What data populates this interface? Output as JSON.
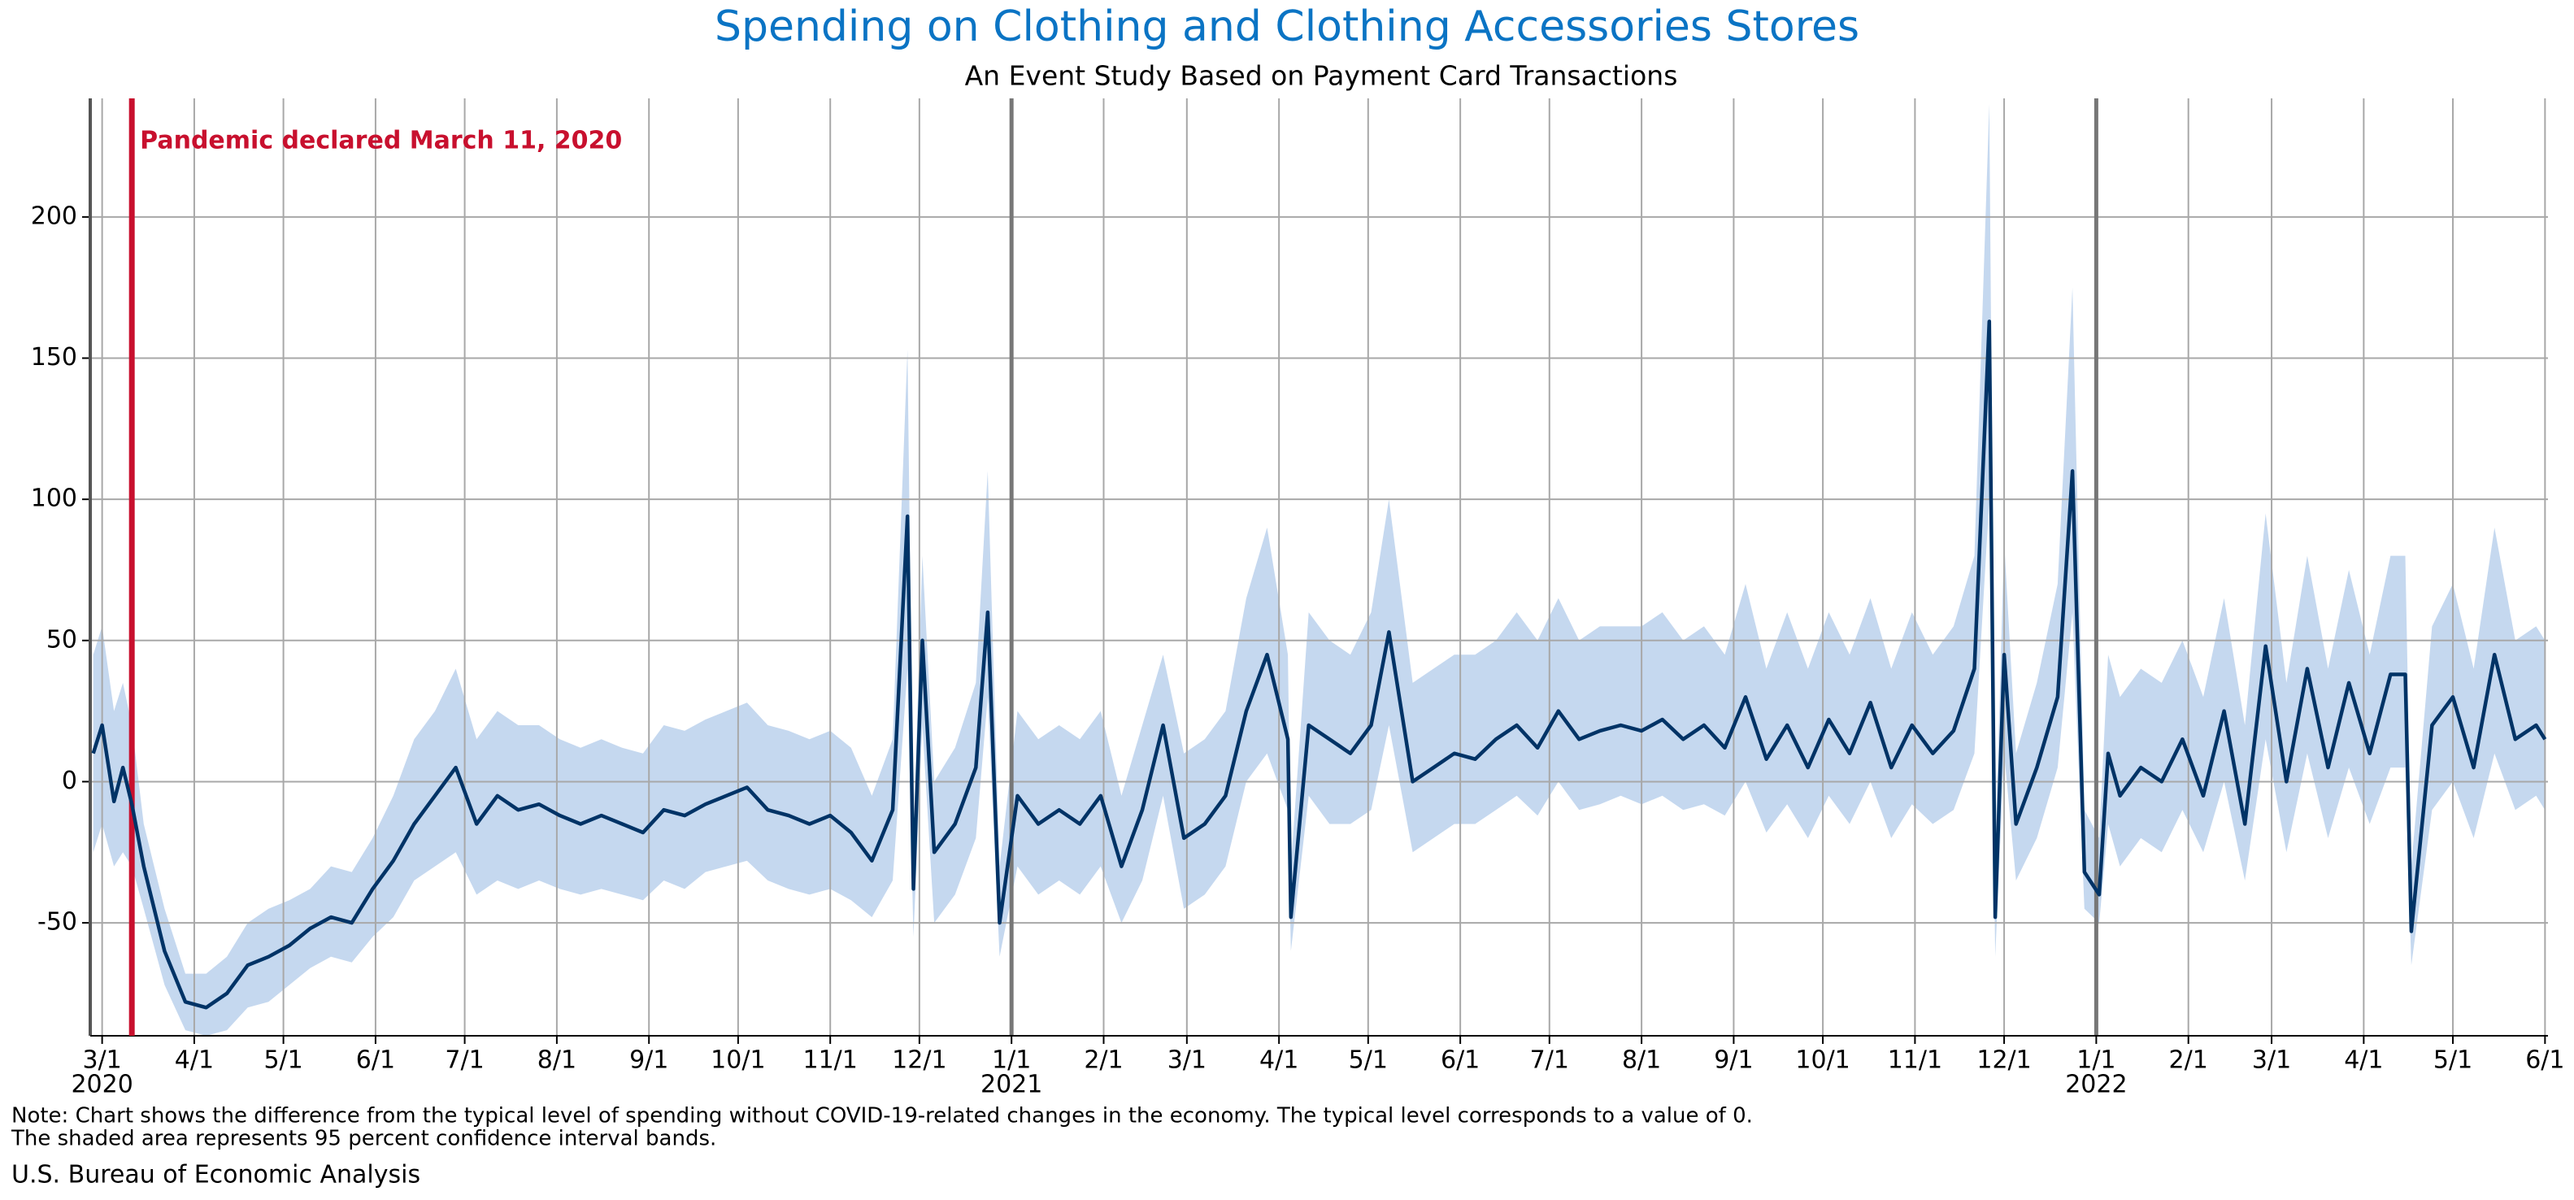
{
  "chart_data": {
    "type": "line",
    "title": "Spending on Clothing and Clothing Accessories Stores",
    "subtitle": "An Event Study Based on Payment Card Transactions",
    "note": [
      "Note: Chart shows the difference from the typical level of spending without COVID-19-related changes in the economy. The typical level corresponds to a value of 0.",
      "The shaded area represents 95 percent confidence interval bands."
    ],
    "source": "U.S. Bureau of Economic Analysis",
    "event": {
      "date": "2020-03-11",
      "label": "Pandemic declared March 11, 2020",
      "color": "#c8102e"
    },
    "color": "#003366",
    "band_color": "#c5d8ef",
    "grid": true,
    "xlim": [
      "2020-02-26",
      "2022-06-02"
    ],
    "ylim": [
      -90,
      242
    ],
    "yticks": [
      -50,
      0,
      50,
      100,
      150,
      200
    ],
    "xticks": [
      {
        "value": "2020-03-01",
        "label": "3/1"
      },
      {
        "value": "2020-04-01",
        "label": "4/1"
      },
      {
        "value": "2020-05-01",
        "label": "5/1"
      },
      {
        "value": "2020-06-01",
        "label": "6/1"
      },
      {
        "value": "2020-07-01",
        "label": "7/1"
      },
      {
        "value": "2020-08-01",
        "label": "8/1"
      },
      {
        "value": "2020-09-01",
        "label": "9/1"
      },
      {
        "value": "2020-10-01",
        "label": "10/1"
      },
      {
        "value": "2020-11-01",
        "label": "11/1"
      },
      {
        "value": "2020-12-01",
        "label": "12/1"
      },
      {
        "value": "2021-01-01",
        "label": "1/1"
      },
      {
        "value": "2021-02-01",
        "label": "2/1"
      },
      {
        "value": "2021-03-01",
        "label": "3/1"
      },
      {
        "value": "2021-04-01",
        "label": "4/1"
      },
      {
        "value": "2021-05-01",
        "label": "5/1"
      },
      {
        "value": "2021-06-01",
        "label": "6/1"
      },
      {
        "value": "2021-07-01",
        "label": "7/1"
      },
      {
        "value": "2021-08-01",
        "label": "8/1"
      },
      {
        "value": "2021-09-01",
        "label": "9/1"
      },
      {
        "value": "2021-10-01",
        "label": "10/1"
      },
      {
        "value": "2021-11-01",
        "label": "11/1"
      },
      {
        "value": "2021-12-01",
        "label": "12/1"
      },
      {
        "value": "2022-01-01",
        "label": "1/1"
      },
      {
        "value": "2022-02-01",
        "label": "2/1"
      },
      {
        "value": "2022-03-01",
        "label": "3/1"
      },
      {
        "value": "2022-04-01",
        "label": "4/1"
      },
      {
        "value": "2022-05-01",
        "label": "5/1"
      },
      {
        "value": "2022-06-01",
        "label": "6/1"
      }
    ],
    "year_labels": [
      {
        "value": "2020-03-01",
        "label": "2020"
      },
      {
        "value": "2021-01-01",
        "label": "2021"
      },
      {
        "value": "2022-01-01",
        "label": "2022"
      }
    ],
    "year_lines": [
      "2021-01-01",
      "2022-01-01"
    ],
    "x": [
      "2020-02-27",
      "2020-03-01",
      "2020-03-05",
      "2020-03-08",
      "2020-03-11",
      "2020-03-15",
      "2020-03-22",
      "2020-03-29",
      "2020-04-05",
      "2020-04-12",
      "2020-04-19",
      "2020-04-26",
      "2020-05-03",
      "2020-05-10",
      "2020-05-17",
      "2020-05-24",
      "2020-05-31",
      "2020-06-07",
      "2020-06-14",
      "2020-06-21",
      "2020-06-28",
      "2020-07-05",
      "2020-07-12",
      "2020-07-19",
      "2020-07-26",
      "2020-08-02",
      "2020-08-09",
      "2020-08-16",
      "2020-08-23",
      "2020-08-30",
      "2020-09-06",
      "2020-09-13",
      "2020-09-20",
      "2020-09-27",
      "2020-10-04",
      "2020-10-11",
      "2020-10-18",
      "2020-10-25",
      "2020-11-01",
      "2020-11-08",
      "2020-11-15",
      "2020-11-22",
      "2020-11-27",
      "2020-11-29",
      "2020-12-02",
      "2020-12-06",
      "2020-12-13",
      "2020-12-20",
      "2020-12-24",
      "2020-12-28",
      "2021-01-03",
      "2021-01-10",
      "2021-01-17",
      "2021-01-24",
      "2021-01-31",
      "2021-02-07",
      "2021-02-14",
      "2021-02-21",
      "2021-02-28",
      "2021-03-07",
      "2021-03-14",
      "2021-03-21",
      "2021-03-28",
      "2021-04-04",
      "2021-04-05",
      "2021-04-11",
      "2021-04-18",
      "2021-04-25",
      "2021-05-02",
      "2021-05-08",
      "2021-05-16",
      "2021-05-23",
      "2021-05-30",
      "2021-06-06",
      "2021-06-13",
      "2021-06-20",
      "2021-06-27",
      "2021-07-04",
      "2021-07-11",
      "2021-07-18",
      "2021-07-25",
      "2021-08-01",
      "2021-08-08",
      "2021-08-15",
      "2021-08-22",
      "2021-08-29",
      "2021-09-05",
      "2021-09-12",
      "2021-09-19",
      "2021-09-26",
      "2021-10-03",
      "2021-10-10",
      "2021-10-17",
      "2021-10-24",
      "2021-10-31",
      "2021-11-07",
      "2021-11-14",
      "2021-11-21",
      "2021-11-26",
      "2021-11-28",
      "2021-12-01",
      "2021-12-05",
      "2021-12-12",
      "2021-12-19",
      "2021-12-24",
      "2021-12-28",
      "2022-01-02",
      "2022-01-05",
      "2022-01-09",
      "2022-01-16",
      "2022-01-23",
      "2022-01-30",
      "2022-02-06",
      "2022-02-13",
      "2022-02-20",
      "2022-02-27",
      "2022-03-06",
      "2022-03-13",
      "2022-03-20",
      "2022-03-27",
      "2022-04-03",
      "2022-04-10",
      "2022-04-15",
      "2022-04-17",
      "2022-04-24",
      "2022-05-01",
      "2022-05-08",
      "2022-05-15",
      "2022-05-22",
      "2022-05-29",
      "2022-06-01"
    ],
    "values": [
      10,
      20,
      -7,
      5,
      -8,
      -30,
      -60,
      -78,
      -80,
      -75,
      -65,
      -62,
      -58,
      -52,
      -48,
      -50,
      -38,
      -28,
      -15,
      -5,
      5,
      -15,
      -5,
      -10,
      -8,
      -12,
      -15,
      -12,
      -15,
      -18,
      -10,
      -12,
      -8,
      -5,
      -2,
      -10,
      -12,
      -15,
      -12,
      -18,
      -28,
      -10,
      94,
      -38,
      50,
      -25,
      -15,
      5,
      60,
      -50,
      -5,
      -15,
      -10,
      -15,
      -5,
      -30,
      -10,
      20,
      -20,
      -15,
      -5,
      25,
      45,
      15,
      -48,
      20,
      15,
      10,
      20,
      53,
      0,
      5,
      10,
      8,
      15,
      20,
      12,
      25,
      15,
      18,
      20,
      18,
      22,
      15,
      20,
      12,
      30,
      8,
      20,
      5,
      22,
      10,
      28,
      5,
      20,
      10,
      18,
      40,
      163,
      -48,
      45,
      -15,
      5,
      30,
      110,
      -32,
      -40,
      10,
      -5,
      5,
      0,
      15,
      -5,
      25,
      -15,
      48,
      0,
      40,
      5,
      35,
      10,
      38,
      38,
      -53,
      20,
      30,
      5,
      45,
      15,
      20,
      15
    ],
    "ci_upper": [
      45,
      55,
      25,
      35,
      20,
      -15,
      -45,
      -68,
      -68,
      -62,
      -50,
      -45,
      -42,
      -38,
      -30,
      -32,
      -20,
      -5,
      15,
      25,
      40,
      15,
      25,
      20,
      20,
      15,
      12,
      15,
      12,
      10,
      20,
      18,
      22,
      25,
      28,
      20,
      18,
      15,
      18,
      12,
      -5,
      15,
      153,
      -20,
      80,
      0,
      12,
      35,
      110,
      -30,
      25,
      15,
      20,
      15,
      25,
      -5,
      20,
      45,
      10,
      15,
      25,
      65,
      90,
      45,
      -30,
      60,
      50,
      45,
      60,
      100,
      35,
      40,
      45,
      45,
      50,
      60,
      50,
      65,
      50,
      55,
      55,
      55,
      60,
      50,
      55,
      45,
      70,
      40,
      60,
      40,
      60,
      45,
      65,
      40,
      60,
      45,
      55,
      80,
      240,
      -25,
      85,
      10,
      35,
      70,
      175,
      -10,
      -20,
      45,
      30,
      40,
      35,
      50,
      30,
      65,
      20,
      95,
      35,
      80,
      40,
      75,
      45,
      80,
      80,
      -30,
      55,
      70,
      40,
      90,
      50,
      55,
      50
    ],
    "ci_lower": [
      -25,
      -15,
      -30,
      -25,
      -30,
      -45,
      -72,
      -88,
      -90,
      -88,
      -80,
      -78,
      -72,
      -66,
      -62,
      -64,
      -55,
      -48,
      -35,
      -30,
      -25,
      -40,
      -35,
      -38,
      -35,
      -38,
      -40,
      -38,
      -40,
      -42,
      -35,
      -38,
      -32,
      -30,
      -28,
      -35,
      -38,
      -40,
      -38,
      -42,
      -48,
      -35,
      40,
      -55,
      20,
      -50,
      -40,
      -20,
      30,
      -62,
      -30,
      -40,
      -35,
      -40,
      -30,
      -50,
      -35,
      -5,
      -45,
      -40,
      -30,
      0,
      10,
      -10,
      -60,
      -5,
      -15,
      -15,
      -10,
      20,
      -25,
      -20,
      -15,
      -15,
      -10,
      -5,
      -12,
      0,
      -10,
      -8,
      -5,
      -8,
      -5,
      -10,
      -8,
      -12,
      0,
      -18,
      -8,
      -20,
      -5,
      -15,
      0,
      -20,
      -8,
      -15,
      -10,
      10,
      100,
      -62,
      10,
      -35,
      -20,
      5,
      60,
      -45,
      -50,
      -15,
      -30,
      -20,
      -25,
      -10,
      -25,
      0,
      -35,
      15,
      -25,
      10,
      -20,
      5,
      -15,
      5,
      5,
      -65,
      -10,
      0,
      -20,
      10,
      -10,
      -5,
      -10
    ]
  }
}
